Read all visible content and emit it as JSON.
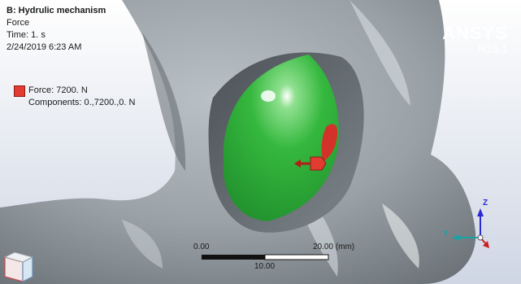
{
  "analysis": {
    "title": "B: Hydrulic mechanism",
    "result_type": "Force",
    "time": "Time: 1. s",
    "timestamp": "2/24/2019 6:23 AM"
  },
  "legend": {
    "label": "Force: 7200. N",
    "components": "Components: 0.,7200.,0. N",
    "color": "#e23b2f"
  },
  "brand": {
    "name": "ANSYS",
    "version": "R18.1"
  },
  "scale_bar": {
    "start_label": "0.00",
    "end_label": "20.00 (mm)",
    "mid_label": "10.00"
  },
  "triad": {
    "x_label": "",
    "y_label": "Y",
    "z_label": "Z",
    "y_color": "#19a3a3",
    "z_color": "#2a2ad4",
    "x_color": "#cc1f1f"
  },
  "colors": {
    "background_top": "#ffffff",
    "background_bottom": "#cfd6e4",
    "geometry": "#8f969c",
    "selected_face": "#2fb33a"
  },
  "icons": {
    "view_cube": "view-cube-icon",
    "force_marker": "force-arrow-icon"
  }
}
